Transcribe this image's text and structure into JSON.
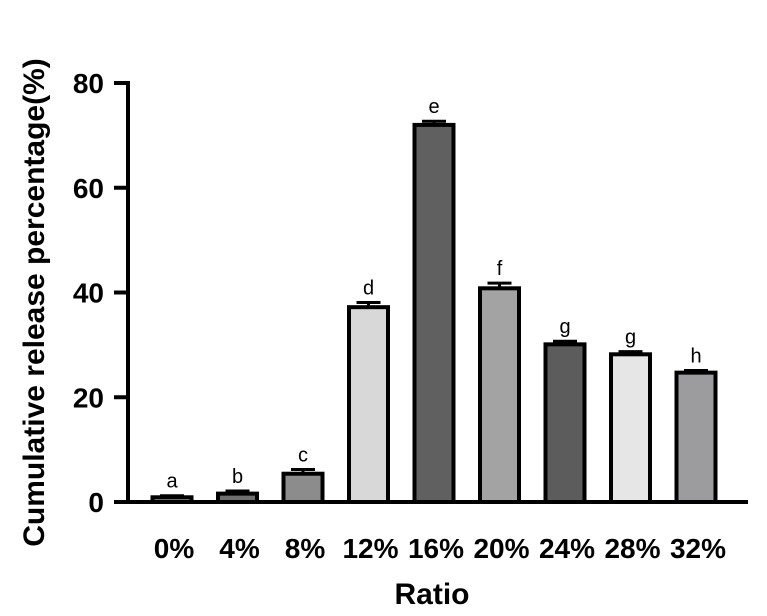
{
  "chart_data": {
    "type": "bar",
    "xlabel": "Ratio",
    "ylabel": "Cumulative release percentage(%)",
    "ylim": [
      0,
      80
    ],
    "yticks": [
      0,
      20,
      40,
      60,
      80
    ],
    "grid": false,
    "categories": [
      "0%",
      "4%",
      "8%",
      "12%",
      "16%",
      "20%",
      "24%",
      "28%",
      "32%"
    ],
    "values": [
      0.9,
      1.6,
      5.4,
      37.2,
      72.0,
      40.8,
      30.1,
      28.2,
      24.7
    ],
    "errors": [
      0.3,
      0.5,
      0.8,
      0.9,
      0.7,
      1.0,
      0.6,
      0.5,
      0.4
    ],
    "significance_letters": [
      "a",
      "b",
      "c",
      "d",
      "e",
      "f",
      "g",
      "g",
      "h"
    ],
    "bar_colors": [
      "#9a9a9a",
      "#6f6f6f",
      "#8c8c8c",
      "#d8d8d8",
      "#606060",
      "#a3a3a3",
      "#5c5c5c",
      "#e6e6e6",
      "#9c9c9e"
    ],
    "axis_color": "#000000"
  }
}
